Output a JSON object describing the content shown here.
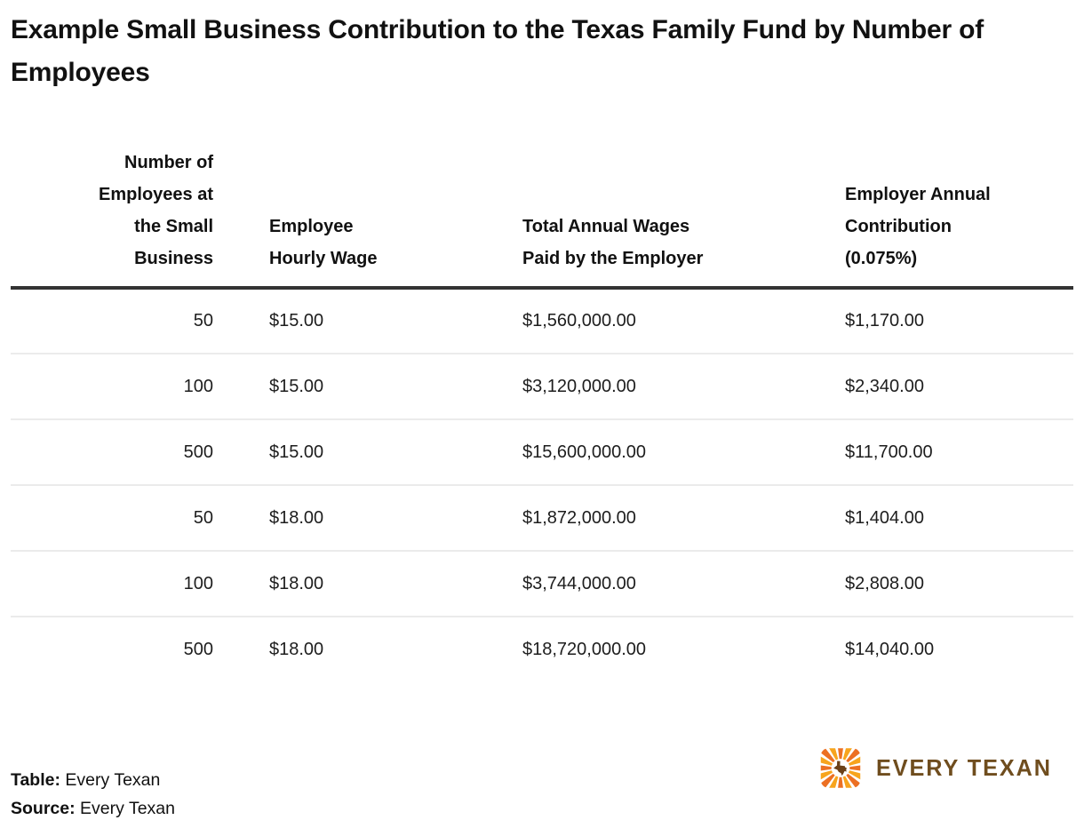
{
  "chart_data": {
    "type": "table",
    "title": "Example Small Business Contribution to the Texas Family Fund by Number of Employees",
    "columns": [
      {
        "label": "Number of Employees at the Small Business",
        "lines": [
          "Number of",
          "Employees at",
          "the Small",
          "Business"
        ],
        "align": "right"
      },
      {
        "label": "Employee Hourly Wage",
        "lines": [
          "Employee",
          "Hourly Wage"
        ],
        "align": "left"
      },
      {
        "label": "Total Annual Wages Paid by the Employer",
        "lines": [
          "Total Annual Wages",
          "Paid by the Employer"
        ],
        "align": "left"
      },
      {
        "label": "Employer Annual Contribution (0.075%)",
        "lines": [
          "Employer Annual",
          "Contribution",
          "(0.075%)"
        ],
        "align": "left"
      }
    ],
    "rows": [
      [
        "50",
        "$15.00",
        "$1,560,000.00",
        "$1,170.00"
      ],
      [
        "100",
        "$15.00",
        "$3,120,000.00",
        "$2,340.00"
      ],
      [
        "500",
        "$15.00",
        "$15,600,000.00",
        "$11,700.00"
      ],
      [
        "50",
        "$18.00",
        "$1,872,000.00",
        "$1,404.00"
      ],
      [
        "100",
        "$18.00",
        "$3,744,000.00",
        "$2,808.00"
      ],
      [
        "500",
        "$18.00",
        "$18,720,000.00",
        "$14,040.00"
      ]
    ],
    "layout_hints": {
      "header_rule": "thick",
      "row_dividers": true,
      "grid": "horizontal-only"
    }
  },
  "footer": {
    "table_label": "Table:",
    "table_value": "Every Texan",
    "source_label": "Source:",
    "source_value": "Every Texan"
  },
  "logo": {
    "wordmark": "EVERY TEXAN",
    "icon": "starburst-texas-icon",
    "colors": {
      "ray_orange": "#EC7023",
      "ray_amber": "#F7A41D",
      "texas_brown": "#6B4018",
      "wordmark_brown": "#6F4D1E"
    }
  },
  "style": {
    "background": "#FFFFFF",
    "title_color": "#111111",
    "text_color": "#1D1D1D",
    "header_rule_color": "#333333",
    "row_divider_color": "#EBEBEB"
  }
}
